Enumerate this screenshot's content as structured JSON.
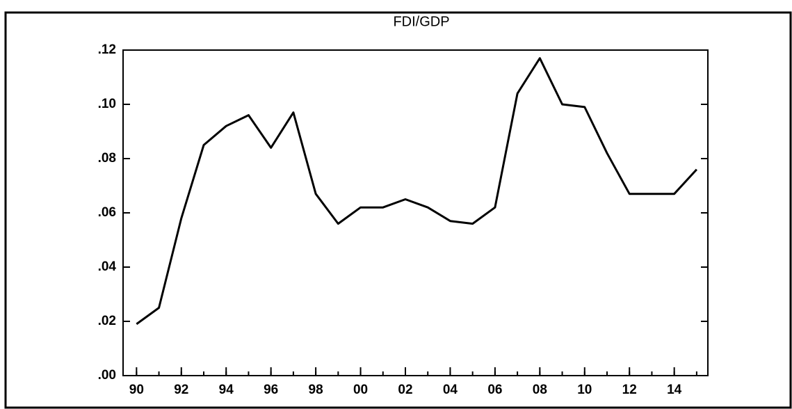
{
  "chart_data": {
    "type": "line",
    "title": "FDI/GDP",
    "x": [
      1990,
      1991,
      1992,
      1993,
      1994,
      1995,
      1996,
      1997,
      1998,
      1999,
      2000,
      2001,
      2002,
      2003,
      2004,
      2005,
      2006,
      2007,
      2008,
      2009,
      2010,
      2011,
      2012,
      2013,
      2014,
      2015
    ],
    "values": [
      0.019,
      0.025,
      0.058,
      0.085,
      0.092,
      0.096,
      0.084,
      0.097,
      0.067,
      0.056,
      0.062,
      0.062,
      0.065,
      0.062,
      0.057,
      0.056,
      0.062,
      0.104,
      0.117,
      0.1,
      0.099,
      0.082,
      0.067,
      0.067,
      0.067,
      0.076
    ],
    "color": "#000000",
    "xlim": [
      1989.4,
      2015.5
    ],
    "xticks": [
      {
        "value": 1990,
        "label": "90"
      },
      {
        "value": 1992,
        "label": "92"
      },
      {
        "value": 1994,
        "label": "94"
      },
      {
        "value": 1996,
        "label": "96"
      },
      {
        "value": 1998,
        "label": "98"
      },
      {
        "value": 2000,
        "label": "00"
      },
      {
        "value": 2002,
        "label": "02"
      },
      {
        "value": 2004,
        "label": "04"
      },
      {
        "value": 2006,
        "label": "06"
      },
      {
        "value": 2008,
        "label": "08"
      },
      {
        "value": 2010,
        "label": "10"
      },
      {
        "value": 2012,
        "label": "12"
      },
      {
        "value": 2014,
        "label": "14"
      }
    ],
    "ylim": [
      0,
      0.12
    ],
    "yticks": [
      {
        "value": 0,
        "label": ".00"
      },
      {
        "value": 0.02,
        "label": ".02"
      },
      {
        "value": 0.04,
        "label": ".04"
      },
      {
        "value": 0.06,
        "label": ".06"
      },
      {
        "value": 0.08,
        "label": ".08"
      },
      {
        "value": 0.1,
        "label": ".10"
      },
      {
        "value": 0.12,
        "label": ".12"
      }
    ],
    "grid": false
  }
}
